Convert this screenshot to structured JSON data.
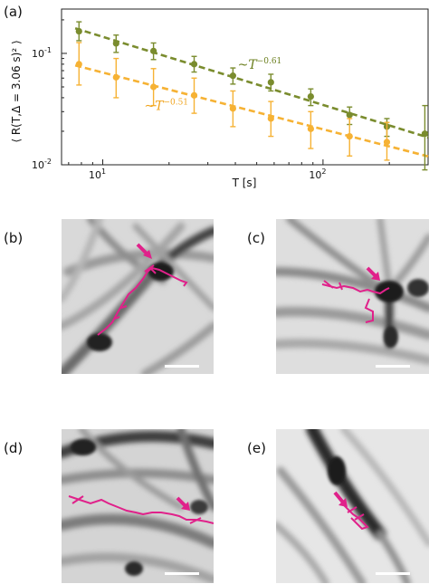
{
  "panels": {
    "a": "(a)",
    "b": "(b)",
    "c": "(c)",
    "d": "(d)",
    "e": "(e)"
  },
  "chart_data": {
    "type": "scatter",
    "xscale": "log",
    "yscale": "log",
    "xlim": [
      6.5,
      300
    ],
    "ylim": [
      0.01,
      0.25
    ],
    "xlabel": "T [s]",
    "ylabel": "⟨ R(T,Δ = 3.06 s)² ⟩",
    "xtick_labels": [
      {
        "value": 10,
        "label": "10",
        "sup": "1"
      },
      {
        "value": 100,
        "label": "10",
        "sup": "2"
      }
    ],
    "ytick_labels": [
      {
        "value": 0.01,
        "label": "10",
        "sup": "-2"
      },
      {
        "value": 0.1,
        "label": "10",
        "sup": "-1"
      }
    ],
    "series": [
      {
        "color": "#7a8c2e",
        "x": [
          7.8,
          11.5,
          17,
          26,
          39,
          58,
          88,
          132,
          195,
          290
        ],
        "y": [
          0.158,
          0.123,
          0.105,
          0.08,
          0.063,
          0.055,
          0.041,
          0.028,
          0.022,
          0.019
        ],
        "err_low": [
          0.13,
          0.102,
          0.088,
          0.068,
          0.053,
          0.046,
          0.034,
          0.023,
          0.018,
          0.009
        ],
        "err_high": [
          0.192,
          0.146,
          0.124,
          0.094,
          0.074,
          0.065,
          0.048,
          0.033,
          0.026,
          0.034
        ],
        "fit": {
          "x0": 7.5,
          "y0": 0.168,
          "x1": 300,
          "y1": 0.0176
        }
      },
      {
        "color": "#f6b234",
        "x": [
          7.8,
          11.5,
          17,
          26,
          39,
          58,
          88,
          132,
          195
        ],
        "y": [
          0.08,
          0.061,
          0.05,
          0.042,
          0.032,
          0.026,
          0.021,
          0.018,
          0.016
        ],
        "err_low": [
          0.052,
          0.04,
          0.034,
          0.029,
          0.022,
          0.018,
          0.014,
          0.012,
          0.011
        ],
        "err_high": [
          0.125,
          0.09,
          0.073,
          0.06,
          0.046,
          0.037,
          0.03,
          0.026,
          0.024
        ],
        "fit": {
          "x0": 7.5,
          "y0": 0.078,
          "x1": 300,
          "y1": 0.0119
        }
      }
    ],
    "annotations": [
      {
        "base": "~T",
        "exp": "−0.61",
        "color": "#6b7f1e"
      },
      {
        "base": "~T",
        "exp": "−0.51",
        "color": "#f0a41e"
      }
    ]
  }
}
